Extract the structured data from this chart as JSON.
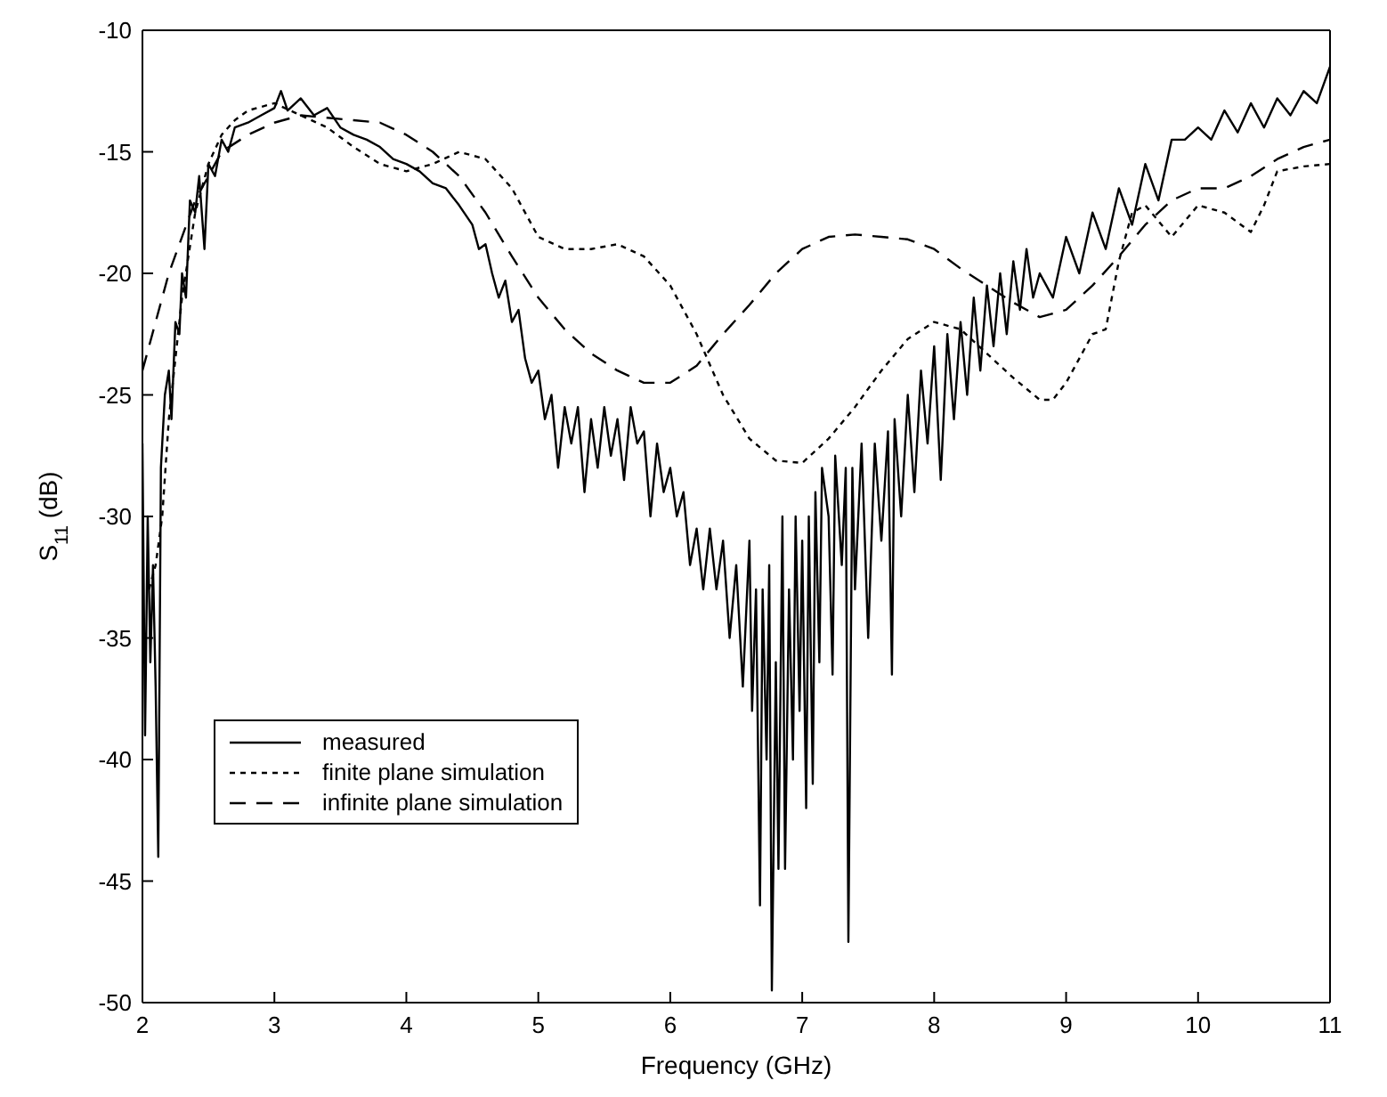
{
  "chart_data": {
    "type": "line",
    "xlabel": "Frequency (GHz)",
    "ylabel": "S$_{11}$ (dB)",
    "xlim": [
      2,
      11
    ],
    "xticks": [
      2,
      3,
      4,
      5,
      6,
      7,
      8,
      9,
      10,
      11
    ],
    "ylim": [
      -50,
      -10
    ],
    "yticks": [
      -50,
      -45,
      -40,
      -35,
      -30,
      -25,
      -20,
      -15,
      -10
    ],
    "grid": false,
    "legend": "bottom left",
    "marker": "none",
    "series": [
      {
        "name": "measured",
        "color": "#000000",
        "line_style": "solid",
        "x": [
          2.0,
          2.02,
          2.04,
          2.06,
          2.08,
          2.1,
          2.12,
          2.14,
          2.17,
          2.2,
          2.22,
          2.25,
          2.28,
          2.3,
          2.33,
          2.36,
          2.4,
          2.43,
          2.47,
          2.5,
          2.55,
          2.6,
          2.65,
          2.7,
          2.8,
          2.9,
          3.0,
          3.05,
          3.1,
          3.2,
          3.3,
          3.4,
          3.5,
          3.6,
          3.7,
          3.8,
          3.9,
          4.0,
          4.1,
          4.2,
          4.3,
          4.4,
          4.5,
          4.55,
          4.6,
          4.65,
          4.7,
          4.75,
          4.8,
          4.85,
          4.9,
          4.95,
          5.0,
          5.05,
          5.1,
          5.15,
          5.2,
          5.25,
          5.3,
          5.35,
          5.4,
          5.45,
          5.5,
          5.55,
          5.6,
          5.65,
          5.7,
          5.75,
          5.8,
          5.85,
          5.9,
          5.95,
          6.0,
          6.05,
          6.1,
          6.15,
          6.2,
          6.25,
          6.3,
          6.35,
          6.4,
          6.45,
          6.5,
          6.55,
          6.6,
          6.62,
          6.65,
          6.68,
          6.7,
          6.73,
          6.75,
          6.77,
          6.8,
          6.82,
          6.85,
          6.87,
          6.9,
          6.93,
          6.95,
          6.98,
          7.0,
          7.03,
          7.05,
          7.08,
          7.1,
          7.13,
          7.15,
          7.2,
          7.23,
          7.25,
          7.3,
          7.33,
          7.35,
          7.38,
          7.4,
          7.45,
          7.5,
          7.55,
          7.6,
          7.65,
          7.68,
          7.7,
          7.75,
          7.8,
          7.85,
          7.9,
          7.95,
          8.0,
          8.05,
          8.1,
          8.15,
          8.2,
          8.25,
          8.3,
          8.35,
          8.4,
          8.45,
          8.5,
          8.55,
          8.6,
          8.65,
          8.7,
          8.75,
          8.8,
          8.85,
          8.9,
          9.0,
          9.1,
          9.2,
          9.3,
          9.4,
          9.5,
          9.6,
          9.7,
          9.8,
          9.9,
          10.0,
          10.1,
          10.2,
          10.3,
          10.4,
          10.5,
          10.6,
          10.7,
          10.8,
          10.9,
          11.0
        ],
        "values": [
          -27,
          -39,
          -30,
          -36,
          -32,
          -37,
          -44,
          -28,
          -25,
          -24,
          -26,
          -22,
          -22.5,
          -20,
          -21,
          -17,
          -17.5,
          -16,
          -19,
          -15.5,
          -16,
          -14.5,
          -15,
          -14,
          -13.8,
          -13.5,
          -13.2,
          -12.5,
          -13.3,
          -12.8,
          -13.5,
          -13.2,
          -14,
          -14.3,
          -14.5,
          -14.8,
          -15.3,
          -15.5,
          -15.8,
          -16.3,
          -16.5,
          -17.2,
          -18,
          -19,
          -18.8,
          -20,
          -21,
          -20.3,
          -22,
          -21.5,
          -23.5,
          -24.5,
          -24,
          -26,
          -25,
          -28,
          -25.5,
          -27,
          -25.5,
          -29,
          -26,
          -28,
          -25.5,
          -27.5,
          -26,
          -28.5,
          -25.5,
          -27,
          -26.5,
          -30,
          -27,
          -29,
          -28,
          -30,
          -29,
          -32,
          -30.5,
          -33,
          -30.5,
          -33,
          -31,
          -35,
          -32,
          -37,
          -31,
          -38,
          -33,
          -46,
          -33,
          -40,
          -32,
          -49.5,
          -36,
          -44.5,
          -30,
          -44.5,
          -33,
          -40,
          -30,
          -38,
          -31,
          -42,
          -30,
          -41,
          -29,
          -36,
          -28,
          -30,
          -36.5,
          -27.5,
          -32,
          -28,
          -47.5,
          -28,
          -33,
          -27,
          -35,
          -27,
          -31,
          -26.5,
          -36.5,
          -26,
          -30,
          -25,
          -29,
          -24,
          -27,
          -23,
          -28.5,
          -22.5,
          -26,
          -22,
          -25,
          -21,
          -24,
          -20.5,
          -23,
          -20,
          -22.5,
          -19.5,
          -21.5,
          -19,
          -21,
          -20,
          -20.5,
          -21,
          -18.5,
          -20,
          -17.5,
          -19,
          -16.5,
          -18,
          -15.5,
          -17,
          -14.5,
          -14.5,
          -14,
          -14.5,
          -13.3,
          -14.2,
          -13,
          -14,
          -12.8,
          -13.5,
          -12.5,
          -13,
          -11.5
        ]
      },
      {
        "name": "finite plane simulation",
        "color": "#000000",
        "line_style": "dotted",
        "x": [
          2.05,
          2.1,
          2.15,
          2.2,
          2.3,
          2.4,
          2.5,
          2.6,
          2.7,
          2.8,
          3.0,
          3.2,
          3.4,
          3.6,
          3.8,
          4.0,
          4.2,
          4.4,
          4.6,
          4.8,
          5.0,
          5.2,
          5.4,
          5.6,
          5.8,
          6.0,
          6.2,
          6.4,
          6.6,
          6.8,
          7.0,
          7.2,
          7.4,
          7.6,
          7.8,
          8.0,
          8.2,
          8.4,
          8.6,
          8.8,
          8.9,
          9.0,
          9.2,
          9.3,
          9.4,
          9.5,
          9.6,
          9.8,
          10.0,
          10.2,
          10.4,
          10.5,
          10.6,
          10.8,
          11.0
        ],
        "values": [
          -33,
          -32,
          -30,
          -26,
          -21,
          -17.5,
          -15.5,
          -14.3,
          -13.7,
          -13.3,
          -13,
          -13.5,
          -14,
          -14.8,
          -15.5,
          -15.8,
          -15.5,
          -15,
          -15.3,
          -16.5,
          -18.5,
          -19,
          -19,
          -18.8,
          -19.3,
          -20.5,
          -22.5,
          -25,
          -26.8,
          -27.7,
          -27.8,
          -26.8,
          -25.5,
          -24,
          -22.7,
          -22,
          -22.3,
          -23.3,
          -24.3,
          -25.2,
          -25.2,
          -24.5,
          -22.5,
          -22.3,
          -19.5,
          -17.5,
          -17.2,
          -18.5,
          -17.2,
          -17.5,
          -18.3,
          -17.2,
          -15.8,
          -15.6,
          -15.5
        ]
      },
      {
        "name": "infinite plane simulation",
        "color": "#000000",
        "line_style": "dashed",
        "x": [
          2.0,
          2.2,
          2.4,
          2.6,
          2.8,
          3.0,
          3.2,
          3.4,
          3.6,
          3.8,
          4.0,
          4.2,
          4.4,
          4.6,
          4.8,
          5.0,
          5.2,
          5.4,
          5.6,
          5.8,
          6.0,
          6.2,
          6.4,
          6.6,
          6.8,
          7.0,
          7.2,
          7.4,
          7.6,
          7.8,
          8.0,
          8.2,
          8.4,
          8.6,
          8.8,
          9.0,
          9.2,
          9.4,
          9.6,
          9.8,
          10.0,
          10.2,
          10.4,
          10.6,
          10.8,
          11.0
        ],
        "values": [
          -24,
          -20,
          -17,
          -15,
          -14.3,
          -13.8,
          -13.5,
          -13.6,
          -13.7,
          -13.8,
          -14.3,
          -15,
          -16,
          -17.5,
          -19.3,
          -21,
          -22.3,
          -23.3,
          -24,
          -24.5,
          -24.5,
          -23.8,
          -22.5,
          -21.3,
          -20,
          -19,
          -18.5,
          -18.4,
          -18.5,
          -18.6,
          -19,
          -19.8,
          -20.5,
          -21.2,
          -21.8,
          -21.5,
          -20.5,
          -19.3,
          -18,
          -17,
          -16.5,
          -16.5,
          -16,
          -15.3,
          -14.8,
          -14.5
        ]
      }
    ]
  }
}
